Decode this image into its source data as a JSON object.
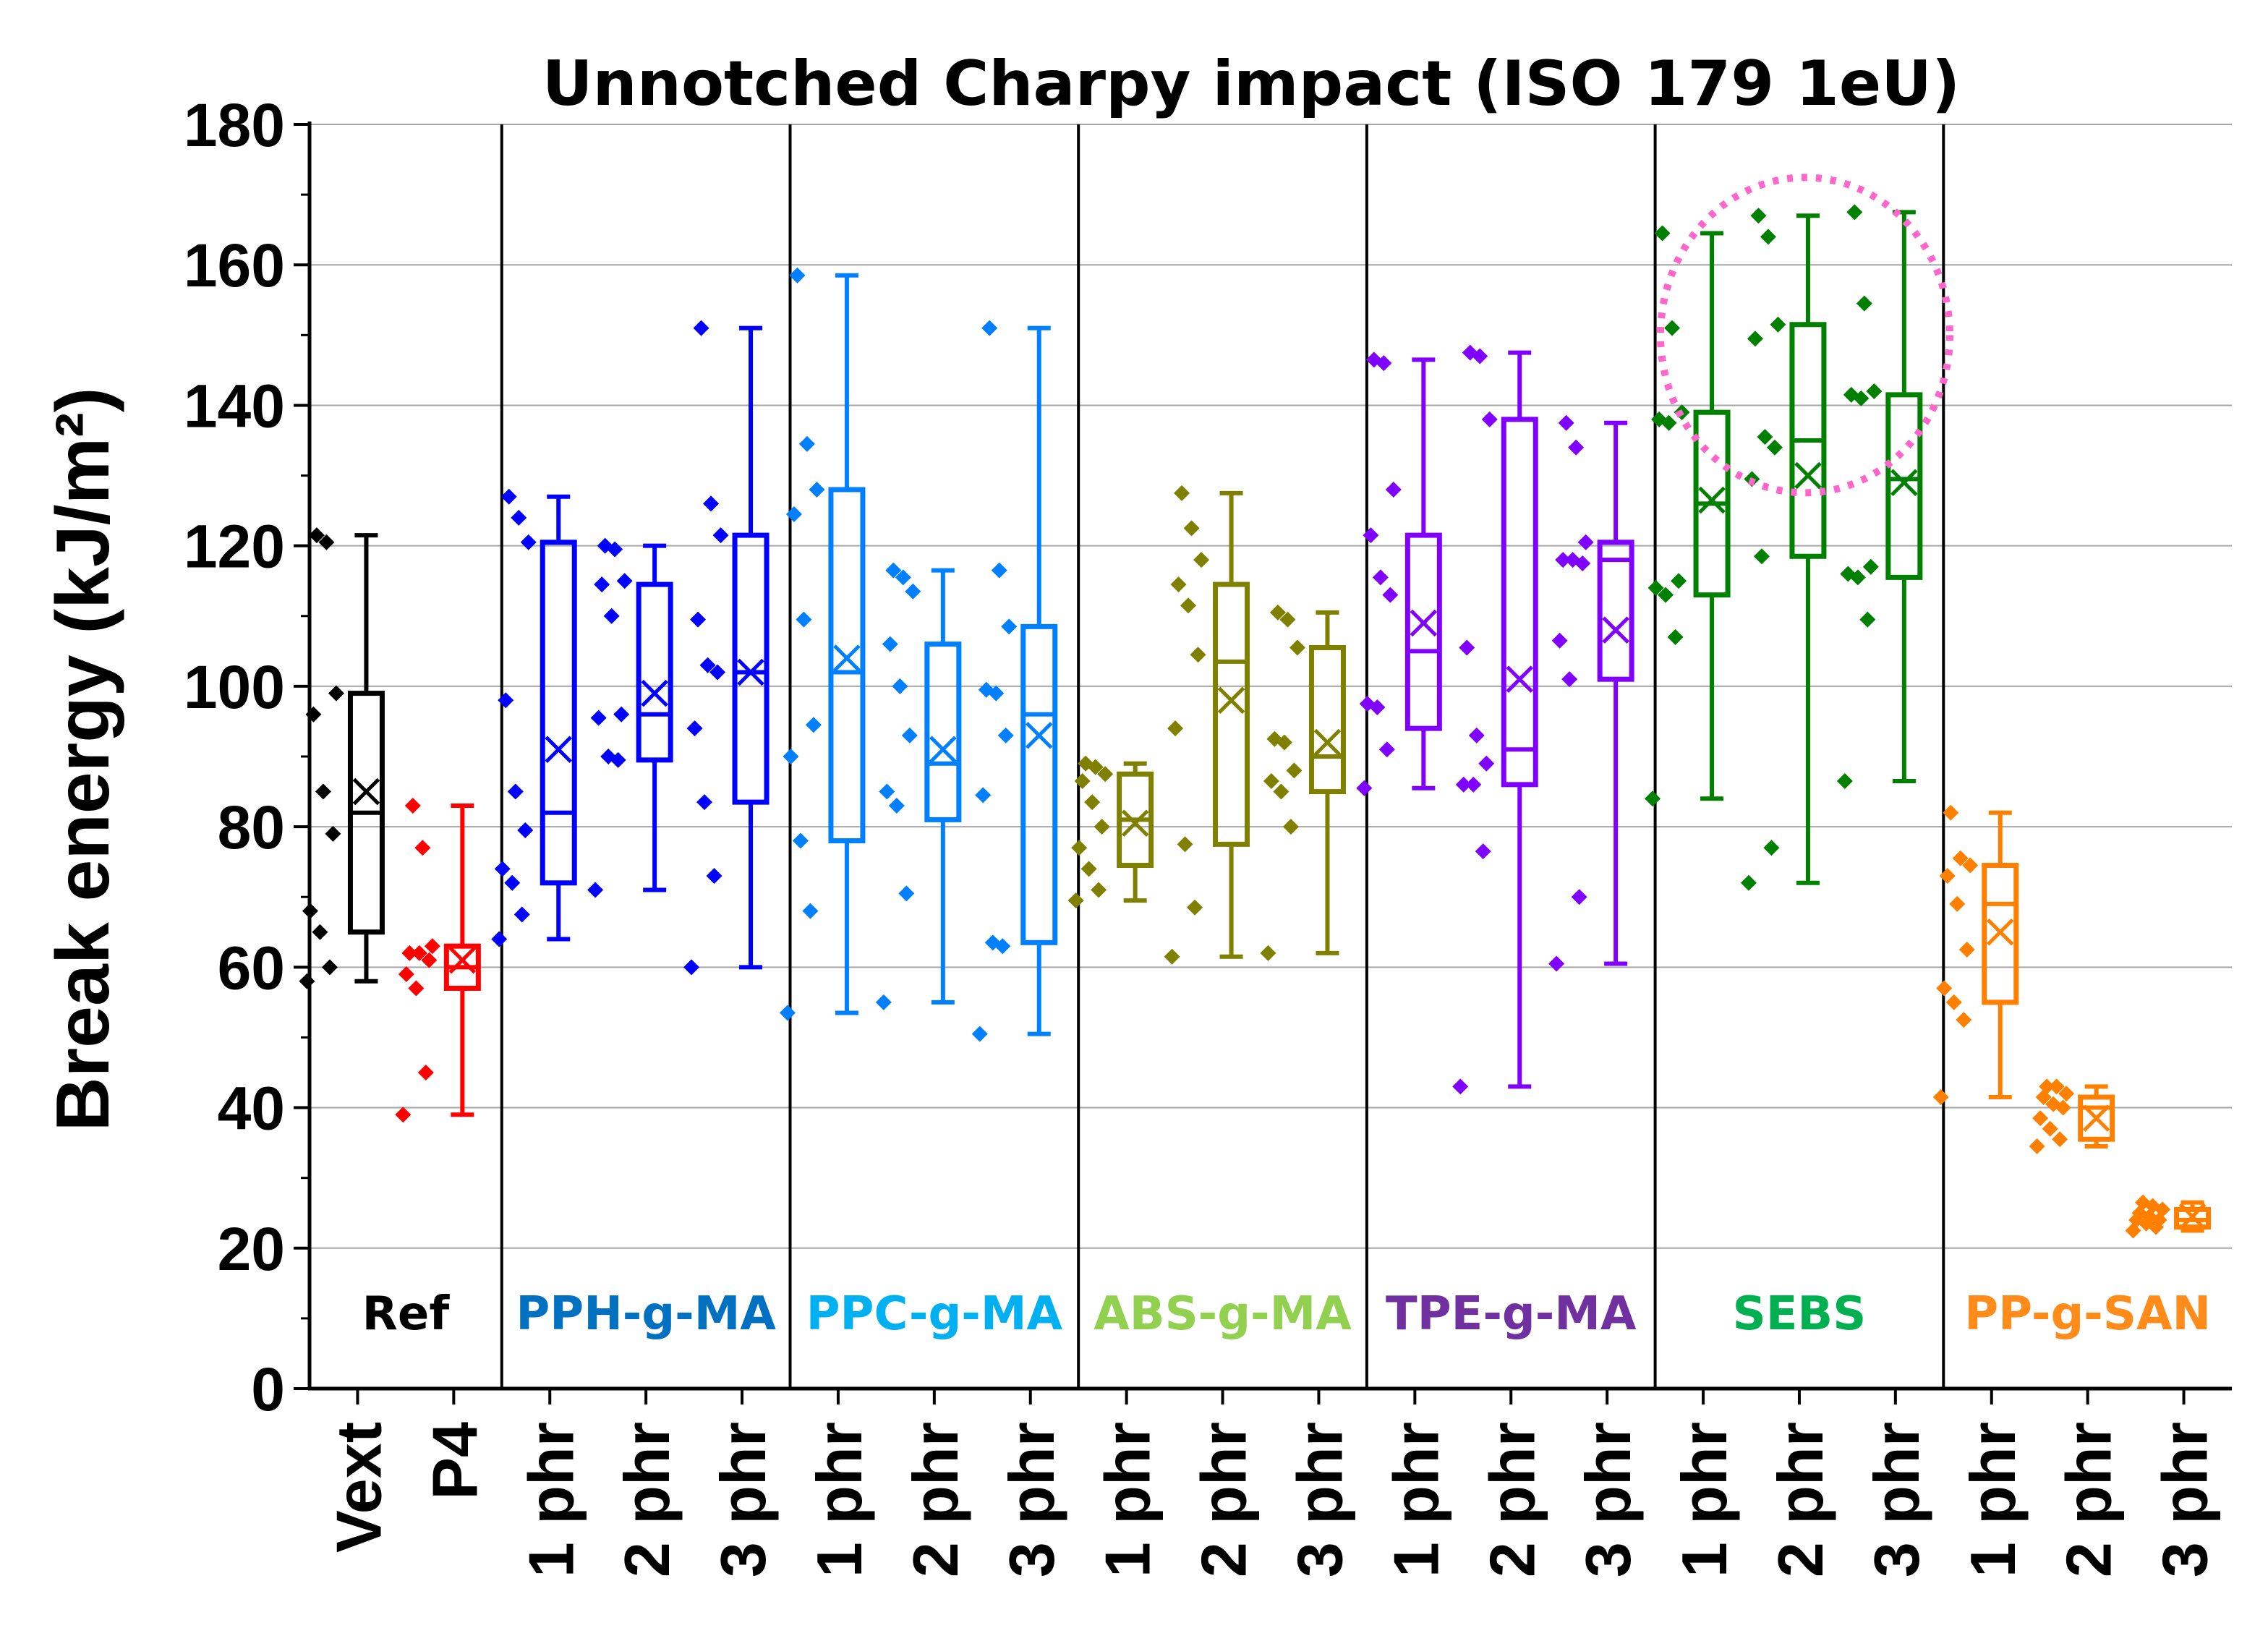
{
  "chart_data": {
    "type": "box",
    "title": "Unnotched Charpy impact (ISO 179 1eU)",
    "ylabel": "Break energy (kJ/m²)",
    "xlabel": "",
    "ylim": [
      0,
      180
    ],
    "yticks": [
      0,
      20,
      40,
      60,
      80,
      100,
      120,
      140,
      160,
      180
    ],
    "grid": "horizontal",
    "annotation": "dotted pink circle around SEBS group",
    "groups": [
      {
        "label": "Ref",
        "color": "#000000",
        "label_color": "#000000",
        "categories": [
          {
            "label": "Vext",
            "color": "#000000",
            "min": 58,
            "q1": 65,
            "median": 82,
            "q3": 99,
            "max": 121.5,
            "mean": 85,
            "points": [
              58,
              60,
              65,
              68,
              79,
              85,
              96,
              99,
              120.5,
              121.5
            ]
          },
          {
            "label": "P4",
            "color": "#ff0000",
            "min": 39,
            "q1": 57,
            "median": 60,
            "q3": 63,
            "max": 83,
            "mean": 61,
            "points": [
              39,
              45,
              57,
              59,
              61,
              62,
              62,
              63,
              77,
              83
            ]
          }
        ]
      },
      {
        "label": "PPH-g-MA",
        "color": "#0000ff",
        "label_color": "#0070c0",
        "categories": [
          {
            "label": "1 phr",
            "color": "#0000ff",
            "min": 64,
            "q1": 72,
            "median": 82,
            "q3": 120.5,
            "max": 127,
            "mean": 91,
            "points": [
              64,
              67.5,
              72,
              74,
              79.5,
              85,
              98,
              120.5,
              124,
              127
            ]
          },
          {
            "label": "2 phr",
            "color": "#0000ff",
            "min": 71,
            "q1": 89.5,
            "median": 96,
            "q3": 114.5,
            "max": 120,
            "mean": 99,
            "points": [
              71,
              89.5,
              90,
              95.5,
              96,
              110,
              114.5,
              115,
              119.5,
              120
            ]
          },
          {
            "label": "3 phr",
            "color": "#0000ff",
            "min": 60,
            "q1": 83.5,
            "median": 102,
            "q3": 121.5,
            "max": 151,
            "mean": 102,
            "points": [
              60,
              73,
              83.5,
              94,
              102,
              103,
              109.5,
              121.5,
              126,
              151
            ]
          }
        ]
      },
      {
        "label": "PPC-g-MA",
        "color": "#0080ff",
        "label_color": "#00b0f0",
        "categories": [
          {
            "label": "1 phr",
            "color": "#0080ff",
            "min": 53.5,
            "q1": 78,
            "median": 102,
            "q3": 128,
            "max": 158.5,
            "mean": 104,
            "points": [
              53.5,
              68,
              78,
              90,
              94.5,
              109.5,
              124.5,
              128,
              134.5,
              158.5
            ]
          },
          {
            "label": "2 phr",
            "color": "#0080ff",
            "min": 55,
            "q1": 81,
            "median": 89,
            "q3": 106,
            "max": 116.5,
            "mean": 91,
            "points": [
              55,
              70.5,
              83,
              85,
              93,
              100,
              106,
              113.5,
              115.5,
              116.5
            ]
          },
          {
            "label": "3 phr",
            "color": "#0080ff",
            "min": 50.5,
            "q1": 63.5,
            "median": 96,
            "q3": 108.5,
            "max": 151,
            "mean": 93,
            "points": [
              50.5,
              63,
              63.5,
              84.5,
              93,
              99,
              99.5,
              108.5,
              116.5,
              151
            ]
          }
        ]
      },
      {
        "label": "ABS-g-MA",
        "color": "#808000",
        "label_color": "#92d050",
        "categories": [
          {
            "label": "1 phr",
            "color": "#808000",
            "min": 69.5,
            "q1": 74.5,
            "median": 81,
            "q3": 87.5,
            "max": 89,
            "mean": 80.5,
            "points": [
              69.5,
              71,
              74,
              77,
              80,
              83.5,
              86.5,
              87.5,
              88.5,
              89
            ]
          },
          {
            "label": "2 phr",
            "color": "#808000",
            "min": 61.5,
            "q1": 77.5,
            "median": 103.5,
            "q3": 114.5,
            "max": 127.5,
            "mean": 98,
            "points": [
              61.5,
              68.5,
              77.5,
              94,
              104.5,
              111.5,
              114.5,
              118,
              122.5,
              127.5
            ]
          },
          {
            "label": "3 phr",
            "color": "#808000",
            "min": 62,
            "q1": 85,
            "median": 90,
            "q3": 105.5,
            "max": 110.5,
            "mean": 92,
            "points": [
              62,
              80,
              85,
              86.5,
              88,
              92,
              92.5,
              105.5,
              109.5,
              110.5
            ]
          }
        ]
      },
      {
        "label": "TPE-g-MA",
        "color": "#8000ff",
        "label_color": "#7030a0",
        "categories": [
          {
            "label": "1 phr",
            "color": "#8000ff",
            "min": 85.5,
            "q1": 94,
            "median": 105,
            "q3": 121.5,
            "max": 146.5,
            "mean": 109,
            "points": [
              85.5,
              91,
              97,
              97.5,
              113,
              115.5,
              121.5,
              128,
              146,
              146.5
            ]
          },
          {
            "label": "2 phr",
            "color": "#8000ff",
            "min": 43,
            "q1": 86,
            "median": 91,
            "q3": 138,
            "max": 147.5,
            "mean": 101,
            "points": [
              43,
              76.5,
              86,
              86,
              89,
              93,
              105.5,
              138,
              147,
              147.5
            ]
          },
          {
            "label": "3 phr",
            "color": "#8000ff",
            "min": 60.5,
            "q1": 101,
            "median": 118,
            "q3": 120.5,
            "max": 137.5,
            "mean": 108,
            "points": [
              60.5,
              70,
              101,
              106.5,
              117.5,
              118,
              118,
              120.5,
              134,
              137.5
            ]
          }
        ]
      },
      {
        "label": "SEBS",
        "color": "#008000",
        "label_color": "#00b050",
        "categories": [
          {
            "label": "1 phr",
            "color": "#008000",
            "min": 84,
            "q1": 113,
            "median": 126,
            "q3": 139,
            "max": 164.5,
            "mean": 126.5,
            "points": [
              84,
              107,
              113,
              114,
              115,
              137.5,
              138,
              139,
              151,
              164.5
            ]
          },
          {
            "label": "2 phr",
            "color": "#008000",
            "min": 72,
            "q1": 118.5,
            "median": 135,
            "q3": 151.5,
            "max": 167,
            "mean": 130,
            "points": [
              72,
              77,
              118.5,
              129.5,
              134,
              135.5,
              149.5,
              151.5,
              164,
              167
            ]
          },
          {
            "label": "3 phr",
            "color": "#008000",
            "min": 86.5,
            "q1": 115.5,
            "median": 129.5,
            "q3": 141.5,
            "max": 167.5,
            "mean": 129,
            "points": [
              86.5,
              109.5,
              115.5,
              116,
              117,
              141,
              141.5,
              142,
              154.5,
              167.5
            ]
          }
        ]
      },
      {
        "label": "PP-g-SAN",
        "color": "#ff8000",
        "label_color": "#ff8c1a",
        "categories": [
          {
            "label": "1 phr",
            "color": "#ff8000",
            "min": 41.5,
            "q1": 55,
            "median": 69,
            "q3": 74.5,
            "max": 82,
            "mean": 65,
            "points": [
              41.5,
              52.5,
              55,
              57,
              62.5,
              69,
              73,
              74.5,
              75.5,
              82
            ]
          },
          {
            "label": "2 phr",
            "color": "#ff8000",
            "min": 34.5,
            "q1": 35.5,
            "median": 40,
            "q3": 41.5,
            "max": 43,
            "mean": 38.5,
            "points": [
              34.5,
              35.5,
              37,
              38.5,
              40,
              40.5,
              41.5,
              42,
              43,
              43
            ]
          },
          {
            "label": "3 phr",
            "color": "#ff8000",
            "min": 22.5,
            "q1": 23,
            "median": 24,
            "q3": 25.5,
            "max": 26.5,
            "mean": 24.5,
            "points": [
              22.5,
              23,
              23.5,
              24,
              24,
              24.5,
              25,
              25.5,
              26,
              26.5
            ]
          }
        ]
      }
    ]
  }
}
